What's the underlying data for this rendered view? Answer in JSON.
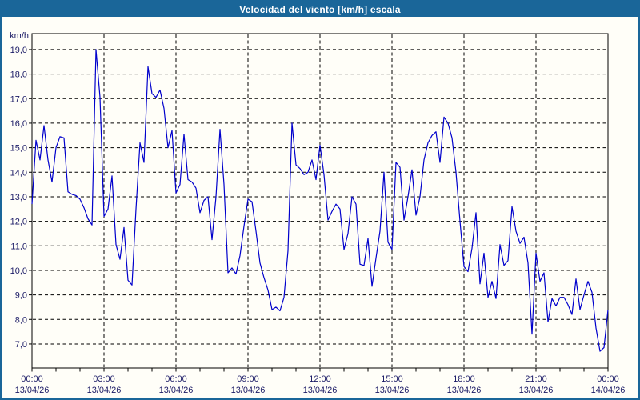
{
  "window": {
    "title": "Velocidad del viento [km/h] escala"
  },
  "colors": {
    "accent": "#1a6699",
    "background": "#fffef8",
    "label": "#1b1b66",
    "grid": "#000000",
    "line": "#0000cc",
    "title_text": "#ffffff"
  },
  "chart_data": {
    "type": "line",
    "title": "Velocidad del viento [km/h] escala",
    "xlabel": "",
    "ylabel": "km/h",
    "ylim": [
      6.02,
      19.65
    ],
    "xlim_hours": [
      0,
      24
    ],
    "grid": true,
    "y_ticks": [
      {
        "value": 19,
        "label": "19,0"
      },
      {
        "value": 18,
        "label": "18,0"
      },
      {
        "value": 17,
        "label": "17,0"
      },
      {
        "value": 16,
        "label": "16,0"
      },
      {
        "value": 15,
        "label": "15,0"
      },
      {
        "value": 14,
        "label": "14,0"
      },
      {
        "value": 13,
        "label": "13,0"
      },
      {
        "value": 12,
        "label": "12,0"
      },
      {
        "value": 11,
        "label": "11,0"
      },
      {
        "value": 10,
        "label": "10,0"
      },
      {
        "value": 9,
        "label": "9,0"
      },
      {
        "value": 8,
        "label": "8,0"
      },
      {
        "value": 7,
        "label": "7,0"
      }
    ],
    "x_ticks": [
      {
        "t": 0,
        "time": "00:00",
        "date": "13/04/26"
      },
      {
        "t": 3,
        "time": "03:00",
        "date": "13/04/26"
      },
      {
        "t": 6,
        "time": "06:00",
        "date": "13/04/26"
      },
      {
        "t": 9,
        "time": "09:00",
        "date": "13/04/26"
      },
      {
        "t": 12,
        "time": "12:00",
        "date": "13/04/26"
      },
      {
        "t": 15,
        "time": "15:00",
        "date": "13/04/26"
      },
      {
        "t": 18,
        "time": "18:00",
        "date": "13/04/26"
      },
      {
        "t": 21,
        "time": "21:00",
        "date": "13/04/26"
      },
      {
        "t": 24,
        "time": "00:00",
        "date": "14/04/26"
      }
    ],
    "minor_tick_every_hours": 1,
    "series": [
      {
        "name": "Velocidad del viento",
        "color": "#0000cc",
        "start_time": "00:00",
        "step_minutes": 10,
        "values": [
          12.7,
          15.3,
          14.5,
          15.9,
          14.5,
          13.6,
          15.0,
          15.45,
          15.4,
          13.2,
          13.1,
          13.05,
          12.9,
          12.55,
          12.1,
          11.85,
          19.0,
          17.05,
          12.2,
          12.5,
          13.85,
          11.05,
          10.45,
          11.75,
          9.6,
          9.4,
          12.5,
          15.2,
          14.4,
          18.3,
          17.2,
          17.05,
          17.35,
          16.6,
          15.0,
          15.7,
          13.15,
          13.5,
          15.55,
          13.7,
          13.6,
          13.35,
          12.35,
          12.85,
          13.0,
          11.25,
          13.0,
          15.75,
          13.5,
          9.9,
          10.1,
          9.85,
          10.6,
          11.8,
          12.9,
          12.8,
          11.6,
          10.3,
          9.7,
          9.2,
          8.4,
          8.5,
          8.35,
          8.9,
          10.8,
          16.0,
          14.3,
          14.15,
          13.9,
          14.0,
          14.5,
          13.7,
          15.1,
          13.9,
          12.05,
          12.4,
          12.7,
          12.5,
          10.85,
          11.5,
          13.0,
          12.7,
          10.25,
          10.2,
          11.3,
          9.35,
          10.5,
          11.6,
          14.0,
          11.15,
          10.85,
          14.4,
          14.2,
          12.05,
          13.0,
          14.1,
          12.25,
          13.0,
          14.5,
          15.2,
          15.5,
          15.65,
          14.4,
          16.25,
          16.0,
          15.4,
          14.0,
          12.0,
          10.15,
          9.95,
          10.9,
          12.35,
          9.45,
          10.7,
          8.9,
          9.55,
          8.85,
          11.05,
          10.2,
          10.4,
          12.6,
          11.6,
          11.1,
          11.35,
          10.3,
          7.4,
          10.7,
          9.55,
          9.9,
          7.9,
          8.85,
          8.55,
          8.9,
          8.9,
          8.6,
          8.2,
          9.65,
          8.4,
          9.0,
          9.55,
          9.1,
          7.65,
          6.7,
          6.85,
          8.4
        ]
      }
    ]
  }
}
